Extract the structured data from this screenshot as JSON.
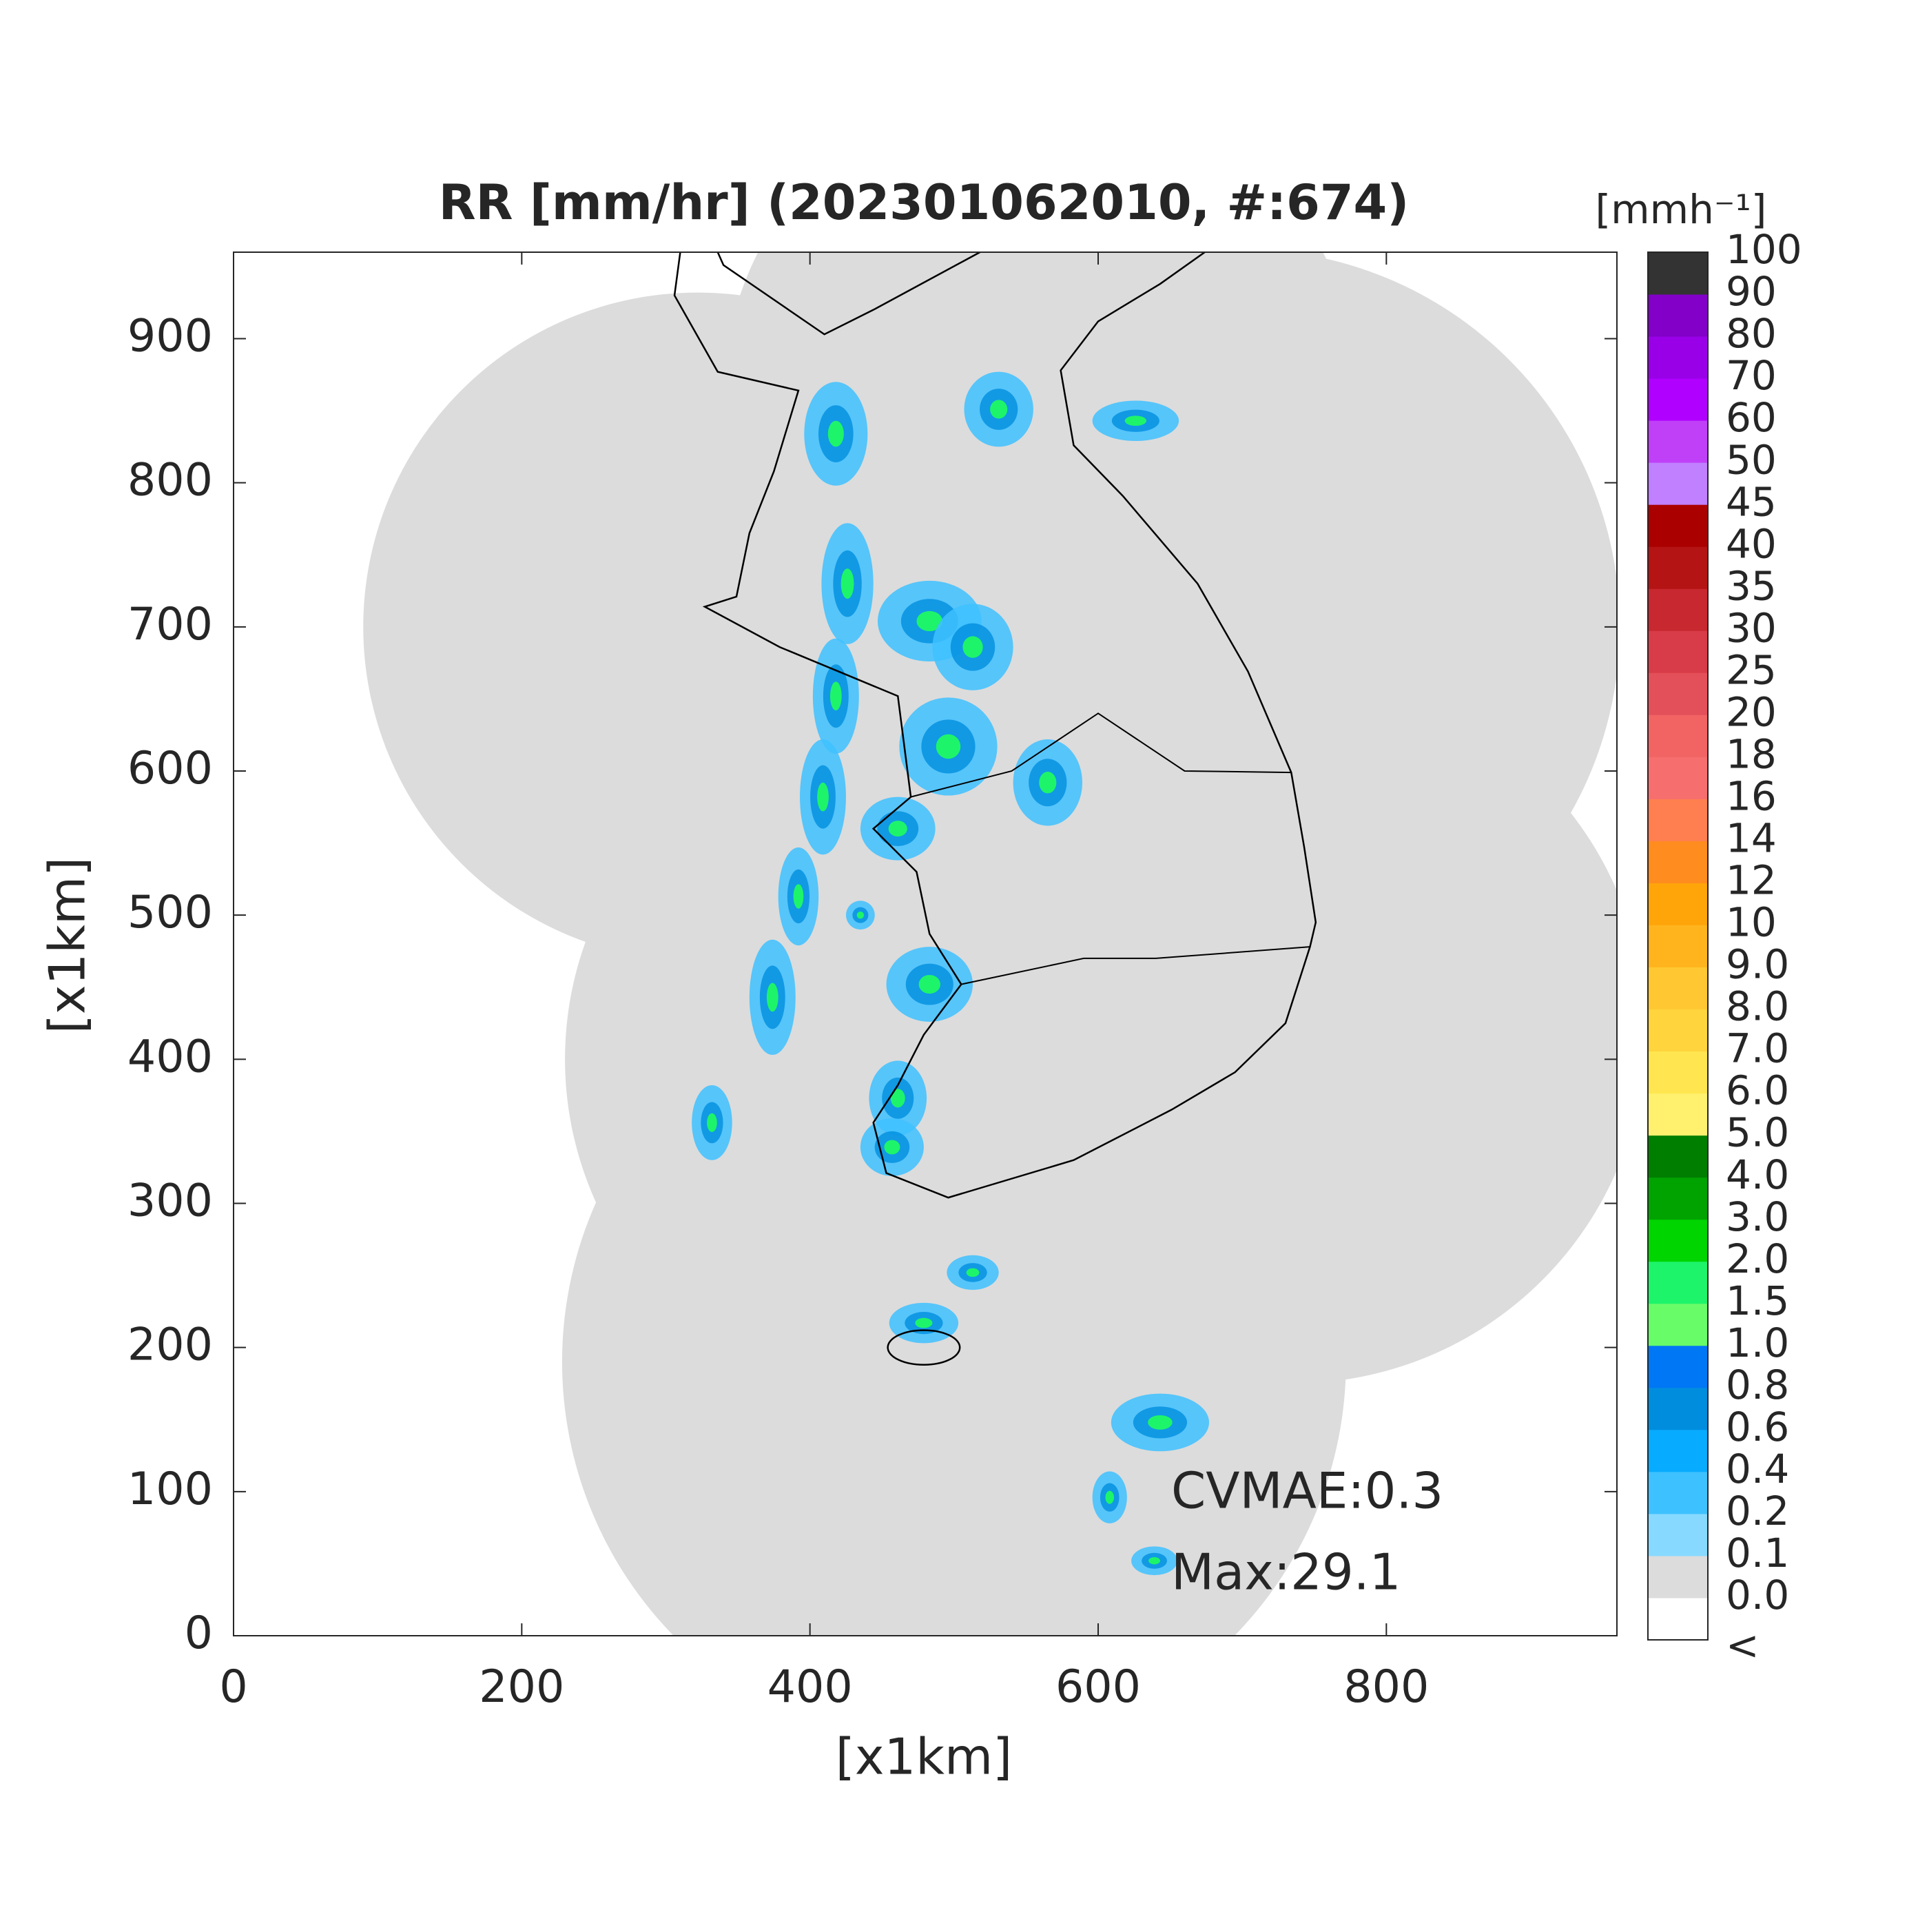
{
  "chart_data": {
    "type": "map",
    "title": "RR [mm/hr] (202301062010, #:674)",
    "xlabel": "[x1km]",
    "ylabel": "[x1km]",
    "xlim": [
      0,
      960
    ],
    "ylim": [
      0,
      960
    ],
    "xticks": [
      0,
      200,
      400,
      600,
      800
    ],
    "yticks": [
      0,
      100,
      200,
      300,
      400,
      500,
      600,
      700,
      800,
      900
    ],
    "colorbar": {
      "title": "[mmh⁻¹]",
      "labels": [
        "<",
        "0.0",
        "0.1",
        "0.2",
        "0.4",
        "0.6",
        "0.8",
        "1.0",
        "1.5",
        "2.0",
        "3.0",
        "4.0",
        "5.0",
        "6.0",
        "7.0",
        "8.0",
        "9.0",
        "10",
        "12",
        "14",
        "16",
        "18",
        "20",
        "25",
        "30",
        "35",
        "40",
        "45",
        "50",
        "60",
        "70",
        "80",
        "90",
        "100"
      ],
      "colors": [
        "#ffffff",
        "#dcdcdc",
        "#87d9ff",
        "#3ec1ff",
        "#07abff",
        "#008dde",
        "#0077f5",
        "#69fc69",
        "#1ef46a",
        "#00d500",
        "#00a300",
        "#007e00",
        "#fff06e",
        "#ffe650",
        "#ffd43c",
        "#ffc832",
        "#ffb41e",
        "#ffa50a",
        "#ff8c1e",
        "#ff7f50",
        "#f66e6e",
        "#f26464",
        "#e4505a",
        "#d83c48",
        "#c82830",
        "#b41414",
        "#aa0000",
        "#c080ff",
        "#c040f8",
        "#b000ff",
        "#9a00e8",
        "#8200c8",
        "#333333"
      ]
    },
    "annotations": [
      "CVMAE:0.3",
      "Max:29.1"
    ]
  }
}
